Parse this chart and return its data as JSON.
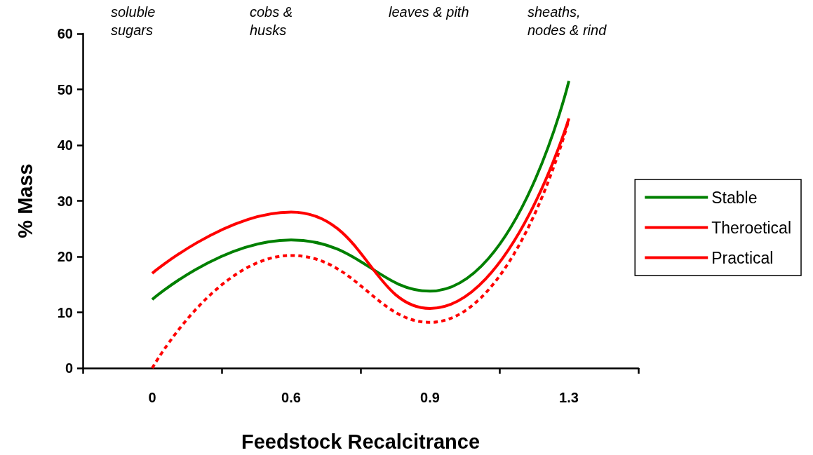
{
  "chart_data": {
    "type": "line",
    "xlabel": "Feedstock Recalcitrance",
    "ylabel": "% Mass",
    "categories": [
      "0",
      "0.6",
      "0.9",
      "1.3"
    ],
    "series": [
      {
        "name": "Stable",
        "color": "#008000",
        "values": [
          12.3,
          23,
          13.8,
          51.5
        ]
      },
      {
        "name": "Theroetical",
        "color": "#ff0000",
        "values": [
          17,
          28,
          10.7,
          44.8
        ]
      },
      {
        "name": "Practical",
        "color": "#ff0000",
        "values": [
          0,
          20.2,
          8.2,
          44.6
        ],
        "line_style": "dashed"
      }
    ],
    "ylim": [
      0,
      60
    ],
    "yticks": [
      0,
      10,
      20,
      30,
      40,
      50,
      60
    ],
    "grid": false,
    "legend": "right",
    "marker": "none",
    "line_style": "solid",
    "annotations": [
      "soluble sugars",
      "cobs & husks",
      "leaves & pith",
      "sheaths, nodes & rind"
    ]
  }
}
